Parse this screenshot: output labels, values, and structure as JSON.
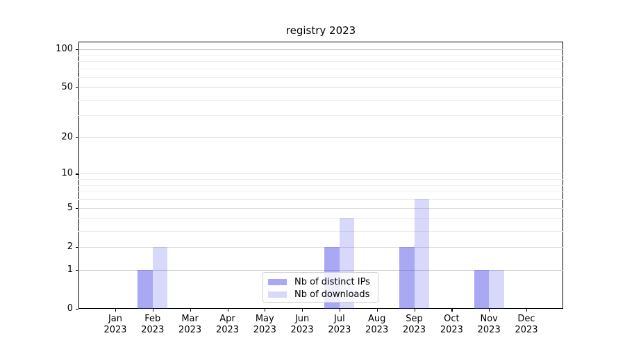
{
  "chart_data": {
    "type": "bar",
    "title": "registry 2023",
    "categories": [
      "Jan 2023",
      "Feb 2023",
      "Mar 2023",
      "Apr 2023",
      "May 2023",
      "Jun 2023",
      "Jul 2023",
      "Aug 2023",
      "Sep 2023",
      "Oct 2023",
      "Nov 2023",
      "Dec 2023"
    ],
    "series": [
      {
        "name": "Nb of distinct IPs",
        "color": "#a8a8f5",
        "fill": "rgba(62,62,232,0.45)",
        "values": [
          0,
          1,
          0,
          0,
          0,
          0,
          2,
          0,
          2,
          0,
          1,
          0
        ]
      },
      {
        "name": "Nb of downloads",
        "color": "#d8d8fa",
        "fill": "rgba(62,62,232,0.20)",
        "values": [
          0,
          2,
          0,
          0,
          0,
          0,
          4,
          0,
          6,
          0,
          1,
          0
        ]
      }
    ],
    "xlabel": "",
    "ylabel": "",
    "y_scale": "log1p",
    "y_ticks": [
      0,
      1,
      2,
      5,
      10,
      20,
      50,
      100
    ],
    "y_minor_gridlines": [
      3,
      4,
      6,
      7,
      8,
      9,
      30,
      40,
      60,
      70,
      80,
      90
    ],
    "y_emphasized_gridlines": [
      1,
      100
    ],
    "ylim": [
      0,
      114
    ],
    "grid": true,
    "legend_position": "lower center"
  },
  "colors": {
    "background": "#ffffff",
    "axis": "#000000",
    "gridline_major": "#dedede",
    "gridline_emphasis": "#c8c8c8",
    "gridline_minor": "#ededed",
    "legend_border": "#d0d0d0"
  }
}
